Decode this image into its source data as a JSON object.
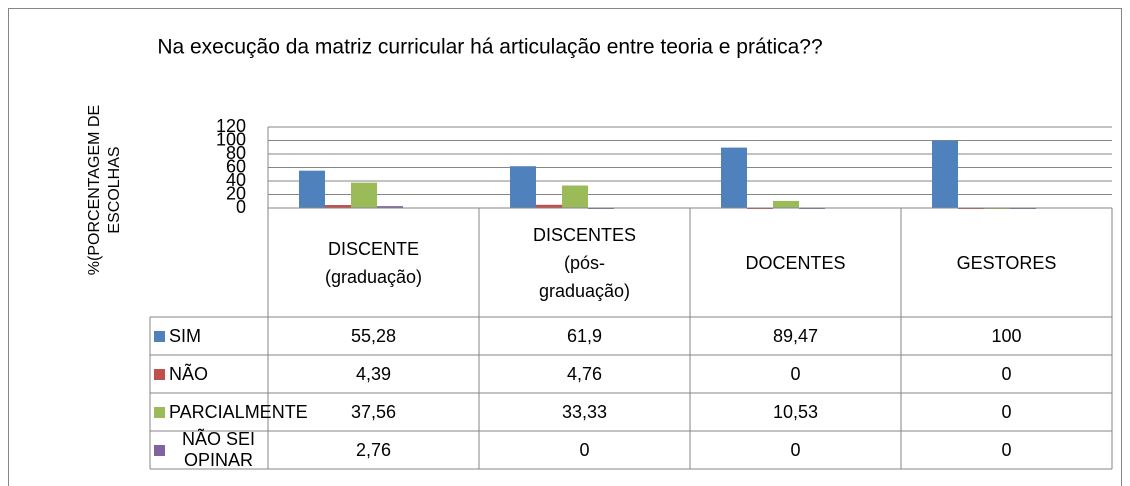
{
  "chart_data": {
    "type": "bar",
    "title": "Na execução da matriz curricular há articulação entre teoria e prática??",
    "y_label": "%(PORCENTAGEM DE ESCOLHAS",
    "categories": [
      "DISCENTE (graduação)",
      "DISCENTES (pós-graduação)",
      "DOCENTES",
      "GESTORES"
    ],
    "series": [
      {
        "name": "SIM",
        "color": "#4f81bd",
        "values": [
          55.28,
          61.9,
          89.47,
          100
        ],
        "value_labels": [
          "55,28",
          "61,9",
          "89,47",
          "100"
        ]
      },
      {
        "name": "NÃO",
        "color": "#c0504d",
        "values": [
          4.39,
          4.76,
          0,
          0
        ],
        "value_labels": [
          "4,39",
          "4,76",
          "0",
          "0"
        ]
      },
      {
        "name": "PARCIALMENTE",
        "color": "#9bbb59",
        "values": [
          37.56,
          33.33,
          10.53,
          0
        ],
        "value_labels": [
          "37,56",
          "33,33",
          "10,53",
          "0"
        ]
      },
      {
        "name": "NÃO SEI OPINAR",
        "color": "#8064a2",
        "values": [
          2.76,
          0,
          0,
          0
        ],
        "value_labels": [
          "2,76",
          "0",
          "0",
          "0"
        ]
      }
    ],
    "ylim": [
      0,
      120
    ],
    "yticks": [
      0,
      20,
      40,
      60,
      80,
      100,
      120
    ],
    "grid": true
  }
}
